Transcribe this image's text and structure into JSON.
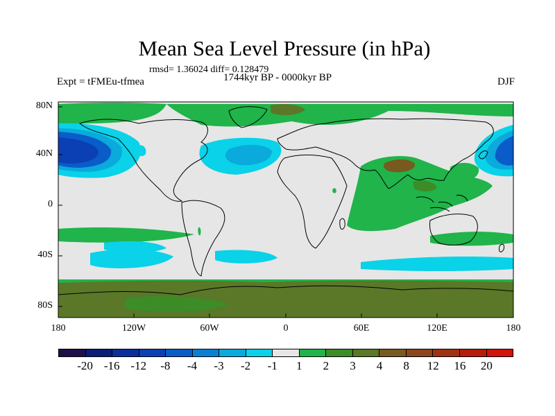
{
  "title": "Mean Sea Level Pressure (in hPa)",
  "stats": "rmsd= 1.36024 diff= 0.128479",
  "experiment": "Expt = tFMEu-tfmea",
  "period": "1744kyr BP - 0000kyr BP",
  "season": "DJF",
  "y_axis": {
    "labels": [
      "80N",
      "40N",
      "0",
      "40S",
      "80S"
    ],
    "values": [
      80,
      40,
      0,
      -40,
      -80
    ],
    "range": [
      -90,
      90
    ]
  },
  "x_axis": {
    "labels": [
      "180",
      "120W",
      "60W",
      "0",
      "60E",
      "120E",
      "180"
    ],
    "values": [
      -180,
      -120,
      -60,
      0,
      60,
      120,
      180
    ],
    "range": [
      -180,
      180
    ]
  },
  "colorbar": {
    "colors": [
      "#20104a",
      "#0a1e78",
      "#0a2e9c",
      "#0a40b4",
      "#0a5cc8",
      "#0a80d2",
      "#0aaadc",
      "#0ad2e8",
      "#e6e6e6",
      "#20b44a",
      "#3c8c28",
      "#5a7828",
      "#785a1e",
      "#8c461e",
      "#a03214",
      "#b41e0a",
      "#d2140a"
    ],
    "labels": [
      "-20",
      "-16",
      "-12",
      "-8",
      "-4",
      "-3",
      "-2",
      "-1",
      "1",
      "2",
      "3",
      "4",
      "8",
      "12",
      "16",
      "20"
    ]
  }
}
